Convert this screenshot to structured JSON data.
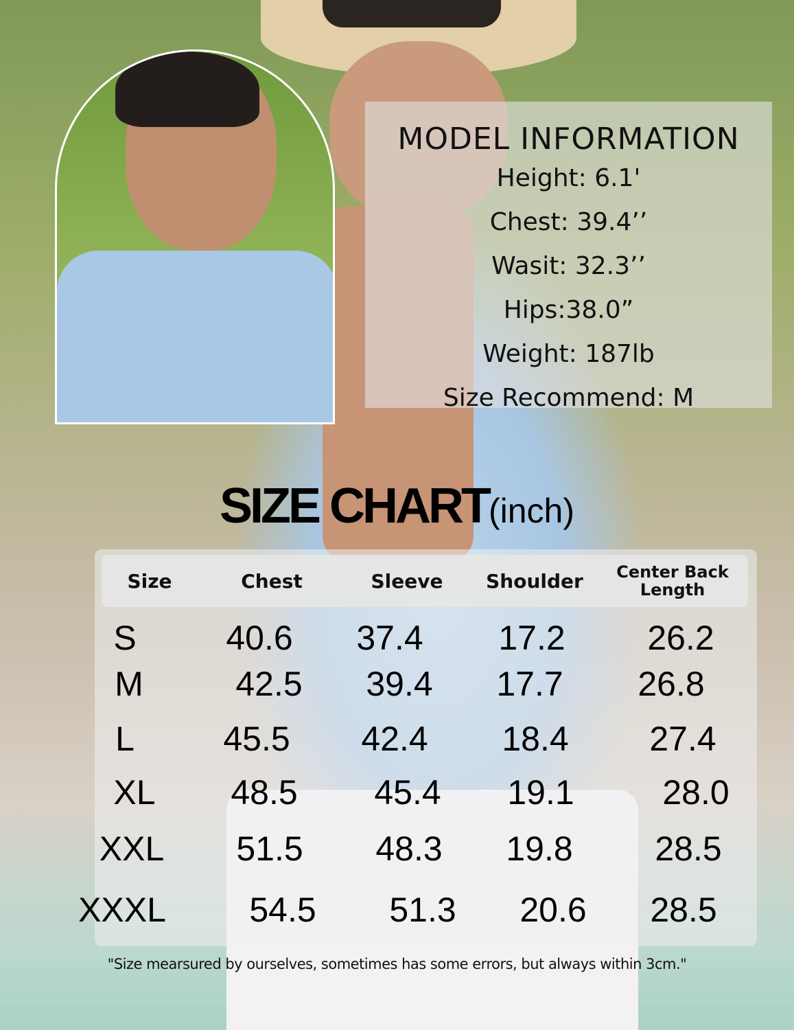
{
  "model_info": {
    "title": "MODEL INFORMATION",
    "lines": [
      "Height: 6.1'",
      "Chest: 39.4’’",
      "Wasit: 32.3’’",
      "Hips:38.0”",
      "Weight: 187lb",
      "Size Recommend: M"
    ]
  },
  "size_chart": {
    "title": "SIZE CHART",
    "unit": "(inch)",
    "headers": [
      "Size",
      "Chest",
      "Sleeve",
      "Shoulder",
      "Center Back Length"
    ],
    "rows": [
      [
        "S",
        "40.6",
        "37.4",
        "17.2",
        "26.2"
      ],
      [
        "M",
        "42.5",
        "39.4",
        "17.7",
        "26.8"
      ],
      [
        "L",
        "45.5",
        "42.4",
        "18.4",
        "27.4"
      ],
      [
        "XL",
        "48.5",
        "45.4",
        "19.1",
        "28.0"
      ],
      [
        "XXL",
        "51.5",
        "48.3",
        "19.8",
        "28.5"
      ],
      [
        "XXXL",
        "54.5",
        "51.3",
        "20.6",
        "28.5"
      ]
    ],
    "note": "\"Size mearsured by ourselves, sometimes has some errors, but always within 3cm.\""
  },
  "colors": {
    "shirt": "#a9c8e6",
    "panel": "#e1e1e1",
    "text": "#000000"
  }
}
